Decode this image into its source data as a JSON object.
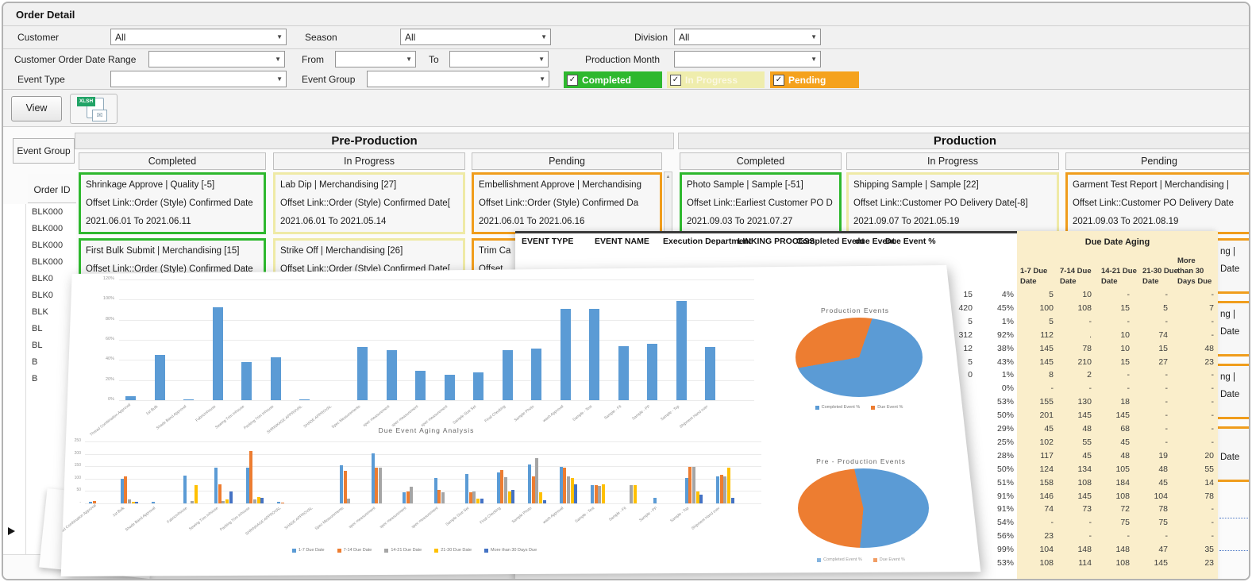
{
  "header": {
    "title": "Order Detail"
  },
  "icons": {
    "dropdown_arrow": "▼",
    "check": "✓",
    "scroll_up": "▲",
    "envelope": "✉"
  },
  "filters": [
    {
      "label": "Customer",
      "value": "All"
    },
    {
      "label": "Season",
      "value": "All"
    },
    {
      "label": "Division",
      "value": "All"
    },
    {
      "label": "Customer Order Date Range",
      "value": ""
    },
    {
      "label": "From",
      "value": ""
    },
    {
      "label": "To",
      "value": ""
    },
    {
      "label": "Production Month",
      "value": ""
    },
    {
      "label": "Event Type",
      "value": ""
    },
    {
      "label": "Event Group",
      "value": ""
    }
  ],
  "status_toggles": [
    {
      "label": "Completed",
      "color": "#2eb82e",
      "text": "#ffffff",
      "checked": true
    },
    {
      "label": "In Progress",
      "color": "#efedad",
      "text": "#fbf8e2",
      "checked": true
    },
    {
      "label": "Pending",
      "color": "#f5a21d",
      "text": "#ffffff",
      "checked": true
    }
  ],
  "toolbar": {
    "view": "View",
    "export_tag": "XLSH"
  },
  "board": {
    "left": {
      "event_group": "Event Group",
      "order_id": "Order ID",
      "order_ids": [
        "BLK000",
        "BLK000",
        "BLK000",
        "BLK000",
        "BLK0",
        "BLK0",
        "BLK",
        "BL",
        "BL",
        "B",
        "B",
        "",
        "",
        "",
        "",
        "",
        "",
        "",
        "",
        "",
        ""
      ]
    },
    "groups": [
      {
        "title": "Pre-Production",
        "columns": [
          {
            "header": "Completed",
            "accent": "#2eb82e",
            "cards": [
              {
                "lines": [
                  "Shrinkage Approve | Quality [-5]",
                  "Offset Link::Order (Style) Confirmed Date",
                  "2021.06.01 To 2021.06.11"
                ]
              },
              {
                "lines": [
                  "First Bulk Submit | Merchandising  [15]",
                  "Offset Link::Order (Style) Confirmed Date",
                  ""
                ]
              }
            ]
          },
          {
            "header": "In Progress",
            "accent": "#efeaa6",
            "cards": [
              {
                "lines": [
                  "Lab Dip | Merchandising  [27]",
                  "Offset Link::Order (Style) Confirmed Date[",
                  "2021.06.01 To 2021.05.14"
                ]
              },
              {
                "lines": [
                  "Strike Off | Merchandising  [26]",
                  "Offset Link::Order (Style) Confirmed Date[",
                  ""
                ]
              }
            ]
          },
          {
            "header": "Pending",
            "accent": "#f09d1c",
            "cards": [
              {
                "lines": [
                  "Embellishment Approve | Merchandising",
                  "Offset Link::Order (Style) Confirmed Da",
                  "2021.06.01 To 2021.06.16"
                ]
              },
              {
                "lines": [
                  "Trim Ca",
                  "Offset",
                  ""
                ]
              }
            ]
          }
        ]
      },
      {
        "title": "Production",
        "columns": [
          {
            "header": "Completed",
            "accent": "#2eb82e",
            "cards": [
              {
                "lines": [
                  "Photo Sample | Sample  [-51]",
                  "Offset Link::Earliest Customer PO D",
                  "2021.09.03 To 2021.07.27"
                ]
              }
            ]
          },
          {
            "header": "In Progress",
            "accent": "#efeaa6",
            "cards": [
              {
                "lines": [
                  "Shipping Sample | Sample  [22]",
                  "Offset Link::Customer PO Delivery Date[-8]",
                  "2021.09.07 To 2021.05.19"
                ]
              }
            ]
          },
          {
            "header": "Pending",
            "accent": "#f09d1c",
            "cards": [
              {
                "lines": [
                  "Garment Test Report | Merchandising  |",
                  "Offset Link::Customer PO Delivery Date",
                  "2021.09.03 To 2021.08.19"
                ]
              }
            ]
          }
        ]
      }
    ],
    "pending_stubs": [
      {
        "l1": "ng  |",
        "l2": "Date"
      },
      {
        "l1": "ng  |",
        "l2": "Date"
      },
      {
        "l1": "ng  |",
        "l2": "Date"
      },
      {
        "l1": "",
        "l2": "Date"
      }
    ]
  },
  "event_table": {
    "columns": [
      "EVENT TYPE",
      "EVENT NAME",
      "Execution Department",
      "LINKING PROCESS",
      "Completed Event",
      "due Event",
      "Due Event %"
    ],
    "aging_title": "Due Date Aging",
    "aging_cols": [
      [
        "1-7  Due",
        "Date"
      ],
      [
        "7-14 Due",
        "Date"
      ],
      [
        "14-21 Due",
        "Date"
      ],
      [
        "21-30 Due",
        "Date"
      ],
      [
        "More",
        "than 30",
        "Days Due"
      ]
    ],
    "rows": [
      {
        "due": "15",
        "pct": "4%",
        "aging": [
          "5",
          "10",
          "-",
          "-",
          "-"
        ]
      },
      {
        "due": "420",
        "pct": "45%",
        "aging": [
          "100",
          "108",
          "15",
          "5",
          "7"
        ]
      },
      {
        "due": "5",
        "pct": "1%",
        "aging": [
          "5",
          "-",
          "-",
          "-",
          "-"
        ]
      },
      {
        "due": "312",
        "pct": "92%",
        "aging": [
          "112",
          ".",
          "10",
          "74",
          "-"
        ]
      },
      {
        "due": "12",
        "pct": "38%",
        "aging": [
          "145",
          "78",
          "10",
          "15",
          "48"
        ]
      },
      {
        "due": "5",
        "pct": "43%",
        "aging": [
          "145",
          "210",
          "15",
          "27",
          "23"
        ]
      },
      {
        "due": "0",
        "pct": "1%",
        "aging": [
          "8",
          "2",
          "-",
          "-",
          "-"
        ]
      },
      {
        "due": "",
        "pct": "0%",
        "aging": [
          "-",
          "-",
          "-",
          "-",
          "-"
        ]
      },
      {
        "due": "",
        "pct": "53%",
        "aging": [
          "155",
          "130",
          "18",
          "-",
          "-"
        ]
      },
      {
        "due": "",
        "pct": "50%",
        "aging": [
          "201",
          "145",
          "145",
          "-",
          "-"
        ]
      },
      {
        "due": "",
        "pct": "29%",
        "aging": [
          "45",
          "48",
          "68",
          "-",
          "-"
        ]
      },
      {
        "due": "",
        "pct": "25%",
        "aging": [
          "102",
          "55",
          "45",
          "-",
          "-"
        ]
      },
      {
        "due": "",
        "pct": "28%",
        "aging": [
          "117",
          "45",
          "48",
          "19",
          "20"
        ]
      },
      {
        "due": "",
        "pct": "50%",
        "aging": [
          "124",
          "134",
          "105",
          "48",
          "55"
        ]
      },
      {
        "due": "",
        "pct": "51%",
        "aging": [
          "158",
          "108",
          "184",
          "45",
          "14"
        ]
      },
      {
        "due": "",
        "pct": "91%",
        "aging": [
          "146",
          "145",
          "108",
          "104",
          "78"
        ]
      },
      {
        "due": "",
        "pct": "91%",
        "aging": [
          "74",
          "73",
          "72",
          "78",
          "-"
        ]
      },
      {
        "due": "",
        "pct": "54%",
        "aging": [
          "-",
          "-",
          "75",
          "75",
          "-"
        ]
      },
      {
        "due": "",
        "pct": "56%",
        "aging": [
          "23",
          "-",
          "-",
          "-",
          "-"
        ]
      },
      {
        "due": "",
        "pct": "99%",
        "aging": [
          "104",
          "148",
          "148",
          "47",
          "35"
        ]
      },
      {
        "due": "",
        "pct": "53%",
        "aging": [
          "108",
          "114",
          "108",
          "145",
          "23"
        ]
      }
    ]
  },
  "chart_data": [
    {
      "type": "bar",
      "title": "",
      "categories": [
        "Thread Combination Approval",
        "1st Bulk",
        "Shade Band Approval",
        "FabricInhouse",
        "Sewing Trim Inhouse",
        "Packing Trim Inhouse",
        "SHRINKAGE APPROVAL",
        "SHADE APPROVAL",
        "Spec Measurements",
        "spec measurement",
        "spec measurement",
        "spec measurement",
        "Sample Size Set",
        "Final Checking",
        "Sample Photo",
        "wash Approval",
        "Sample - Test",
        "Sample - Fit",
        "Sample - PP",
        "Sample - Top",
        "Shipment Hand over"
      ],
      "values": [
        4,
        45,
        1,
        92,
        38,
        43,
        1,
        0,
        53,
        50,
        29,
        25,
        28,
        50,
        51,
        91,
        91,
        54,
        56,
        99,
        53
      ],
      "xlabel": "",
      "ylabel": "",
      "ylim": [
        0,
        120
      ],
      "yticks": [
        "120%",
        "100%",
        "80%",
        "60%",
        "40%",
        "20%",
        "0%"
      ],
      "bar_color": "#5B9BD5",
      "grid": true
    },
    {
      "type": "pie",
      "title": "Production Events",
      "labels": [
        "Completed Event %",
        "Due Event %"
      ],
      "values": [
        67,
        33
      ],
      "colors": [
        "#5B9BD5",
        "#ED7D31"
      ],
      "legend_position": "bottom"
    },
    {
      "type": "bar",
      "title": "Due Event Aging Analysis",
      "categories": [
        "Thread Combination Approval",
        "1st Bulk",
        "Shade Band Approval",
        "FabricInhouse",
        "Sewing Trim Inhouse",
        "Packing Trim Inhouse",
        "SHRINKAGE APPROVAL",
        "SHADE APPROVAL",
        "Spec Measurements",
        "spec measurement",
        "spec measurement",
        "spec measurement",
        "Sample Size Set",
        "Final Checking",
        "Sample Photo",
        "wash Approval",
        "Sample - Test",
        "Sample - Fit",
        "Sample - PP",
        "Sample - Top",
        "Shipment Hand over"
      ],
      "series": [
        {
          "name": "1-7  Due Date",
          "color": "#5B9BD5",
          "values": [
            5,
            100,
            5,
            112,
            145,
            145,
            8,
            0,
            155,
            201,
            45,
            102,
            117,
            124,
            158,
            146,
            74,
            0,
            23,
            104,
            108
          ]
        },
        {
          "name": "7-14 Due Date",
          "color": "#ED7D31",
          "values": [
            10,
            108,
            0,
            0,
            78,
            210,
            2,
            0,
            130,
            145,
            48,
            55,
            45,
            134,
            108,
            145,
            73,
            0,
            0,
            148,
            114
          ]
        },
        {
          "name": "14-21 Due  Date",
          "color": "#A5A5A5",
          "values": [
            0,
            15,
            0,
            10,
            10,
            15,
            0,
            0,
            18,
            145,
            68,
            45,
            48,
            105,
            184,
            108,
            72,
            75,
            0,
            148,
            108
          ]
        },
        {
          "name": "21-30 Due Date",
          "color": "#FFC000",
          "values": [
            0,
            5,
            0,
            74,
            15,
            27,
            0,
            0,
            0,
            0,
            0,
            0,
            19,
            48,
            45,
            104,
            78,
            75,
            0,
            47,
            145
          ]
        },
        {
          "name": "More than 30 Days Due",
          "color": "#4472C4",
          "values": [
            0,
            7,
            0,
            0,
            48,
            23,
            0,
            0,
            0,
            0,
            0,
            0,
            20,
            55,
            14,
            78,
            0,
            0,
            0,
            35,
            23
          ]
        }
      ],
      "ylim": [
        0,
        250
      ],
      "yticks": [
        "250",
        "200",
        "150",
        "100",
        "50",
        "-"
      ],
      "legend_position": "bottom",
      "grid": true
    },
    {
      "type": "pie",
      "title": "Pre - Production Events",
      "labels": [
        "Completed Event %",
        "Due Event %"
      ],
      "values": [
        55,
        45
      ],
      "colors": [
        "#5B9BD5",
        "#ED7D31"
      ],
      "legend_position": "bottom"
    }
  ]
}
